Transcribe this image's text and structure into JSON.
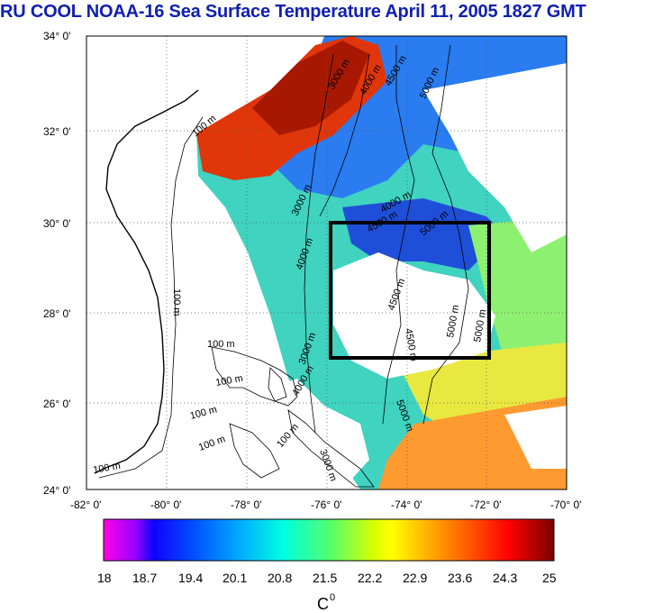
{
  "title": "RU COOL  NOAA-16 Sea Surface Temperature April 11, 2005 1827 GMT",
  "map": {
    "lat_labels": [
      "34° 0'",
      "32° 0'",
      "30° 0'",
      "28° 0'",
      "26° 0'",
      "24° 0'"
    ],
    "lon_labels": [
      "-82° 0'",
      "-80° 0'",
      "-78° 0'",
      "-76° 0'",
      "-74° 0'",
      "-72° 0'",
      "-70° 0'"
    ],
    "contour_labels": [
      "100 m",
      "3000 m",
      "4000 m",
      "4500 m",
      "5000 m",
      "3000 m",
      "4000 m",
      "4500 m",
      "5000 m",
      "100 m",
      "4000 m",
      "4500 m",
      "4500 m",
      "5000 m",
      "5000 m",
      "100 m",
      "100 m",
      "100 m",
      "100 m",
      "100 m",
      "4000 m",
      "3000 m",
      "3000 m",
      "5000 m",
      "100 m"
    ],
    "study_box": {
      "lon_range": [
        -76,
        -72
      ],
      "lat_range": [
        27,
        30
      ]
    }
  },
  "colorbar": {
    "ticks": [
      "18",
      "18.7",
      "19.4",
      "20.1",
      "20.8",
      "21.5",
      "22.2",
      "22.9",
      "23.6",
      "24.3",
      "25"
    ],
    "unit": "C",
    "unit_sup": "0",
    "colors": [
      "#ff00e6",
      "#8a00ff",
      "#0000ff",
      "#0064ff",
      "#00c8ff",
      "#00ffc8",
      "#5aff5a",
      "#d0ff00",
      "#ffff00",
      "#ffc000",
      "#ff7000",
      "#ff1a00",
      "#c80000",
      "#780000"
    ]
  }
}
